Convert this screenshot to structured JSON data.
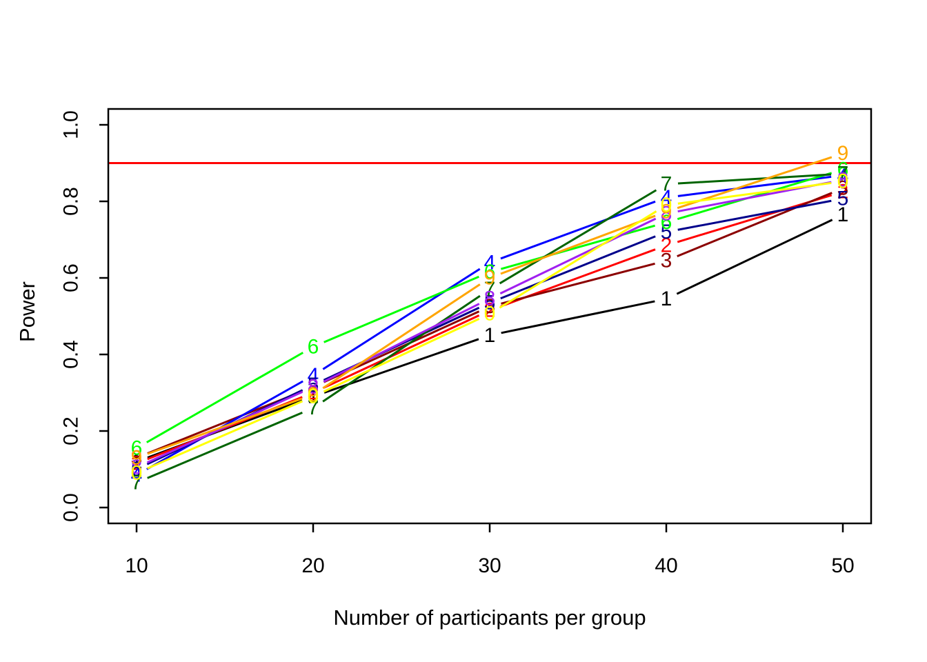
{
  "chart_data": {
    "type": "line",
    "title": "",
    "xlabel": "Number of participants per group",
    "ylabel": "Power",
    "x": [
      10,
      20,
      30,
      40,
      50
    ],
    "x_tick_labels": [
      "10",
      "20",
      "30",
      "40",
      "50"
    ],
    "y_tick_labels": [
      "0.0",
      "0.2",
      "0.4",
      "0.6",
      "0.8",
      "1.0"
    ],
    "xlim": [
      8.4,
      51.6
    ],
    "ylim": [
      0.0,
      1.0
    ],
    "grid": false,
    "legend_position": "none",
    "marker_style": "numeral-glyph-at-point",
    "reference_line": {
      "y": 0.9,
      "color": "#FF0000"
    },
    "series": [
      {
        "label": "1",
        "color": "#000000",
        "values": [
          0.12,
          0.29,
          0.45,
          0.545,
          0.765
        ]
      },
      {
        "label": "2",
        "color": "#FF0000",
        "values": [
          0.115,
          0.3,
          0.515,
          0.685,
          0.825
        ]
      },
      {
        "label": "3",
        "color": "#8B0000",
        "values": [
          0.13,
          0.315,
          0.525,
          0.645,
          0.834
        ]
      },
      {
        "label": "4",
        "color": "#0000FF",
        "values": [
          0.085,
          0.345,
          0.64,
          0.81,
          0.868
        ]
      },
      {
        "label": "5",
        "color": "#00008B",
        "values": [
          0.1,
          0.32,
          0.535,
          0.72,
          0.807
        ]
      },
      {
        "label": "6",
        "color": "#00FF00",
        "values": [
          0.155,
          0.42,
          0.615,
          0.745,
          0.883
        ]
      },
      {
        "label": "7",
        "color": "#006400",
        "values": [
          0.065,
          0.26,
          0.57,
          0.845,
          0.872
        ]
      },
      {
        "label": "8",
        "color": "#A020F0",
        "values": [
          0.105,
          0.315,
          0.546,
          0.768,
          0.856
        ]
      },
      {
        "label": "9",
        "color": "#FFA500",
        "values": [
          0.13,
          0.295,
          0.6,
          0.773,
          0.925
        ]
      },
      {
        "label": "0",
        "color": "#FFFF00",
        "values": [
          0.09,
          0.29,
          0.506,
          0.79,
          0.852
        ]
      }
    ]
  }
}
